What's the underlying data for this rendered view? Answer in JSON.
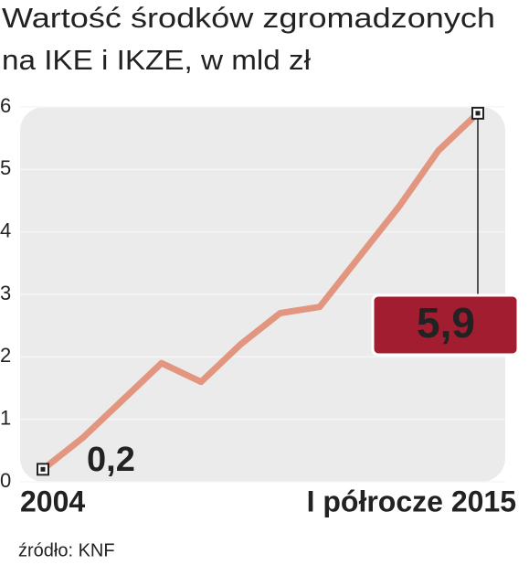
{
  "chart_data": {
    "type": "line",
    "title": [
      "Wartość środków zgromadzonych",
      "na IKE i IKZE, w mld zł"
    ],
    "categories": [
      "2004",
      null,
      null,
      null,
      null,
      null,
      null,
      null,
      null,
      null,
      null,
      "I półrocze 2015"
    ],
    "values": [
      0.2,
      0.7,
      1.3,
      1.9,
      1.6,
      2.2,
      2.7,
      2.8,
      3.6,
      4.4,
      5.3,
      5.9
    ],
    "value_labels": [
      "0,2",
      null,
      null,
      null,
      null,
      null,
      null,
      null,
      null,
      null,
      null,
      "5,9"
    ],
    "color": "#e3967f",
    "ylim": [
      0,
      6
    ],
    "yticks": [
      0,
      1,
      2,
      3,
      4,
      5,
      6
    ],
    "grid": true,
    "source": "źródło: KNF"
  }
}
